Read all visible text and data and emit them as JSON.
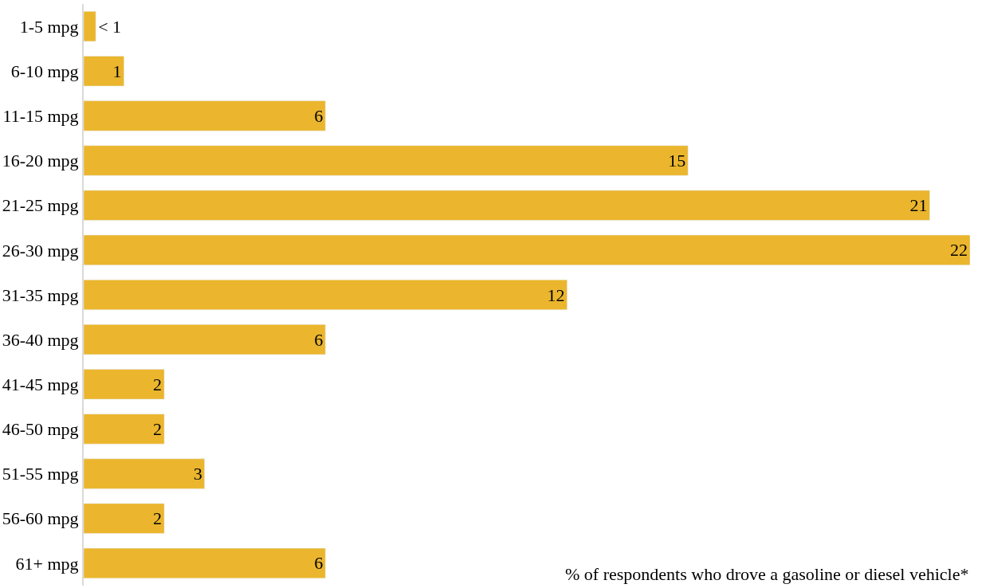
{
  "chart_data": {
    "type": "bar",
    "orientation": "horizontal",
    "categories": [
      "1-5 mpg",
      "6-10 mpg",
      "11-15 mpg",
      "16-20 mpg",
      "21-25 mpg",
      "26-30 mpg",
      "31-35 mpg",
      "36-40 mpg",
      "41-45 mpg",
      "46-50 mpg",
      "51-55 mpg",
      "56-60 mpg",
      "61+ mpg"
    ],
    "values": [
      0.3,
      1,
      6,
      15,
      21,
      22,
      12,
      6,
      2,
      2,
      3,
      2,
      6
    ],
    "value_labels": [
      "< 1",
      "1",
      "6",
      "15",
      "21",
      "22",
      "12",
      "6",
      "2",
      "2",
      "3",
      "2",
      "6"
    ],
    "color": "#ebb62d",
    "xlim": [
      0,
      22
    ],
    "legend": false,
    "annotations": [
      "% of respondents who drove a gasoline or diesel vehicle*"
    ]
  }
}
